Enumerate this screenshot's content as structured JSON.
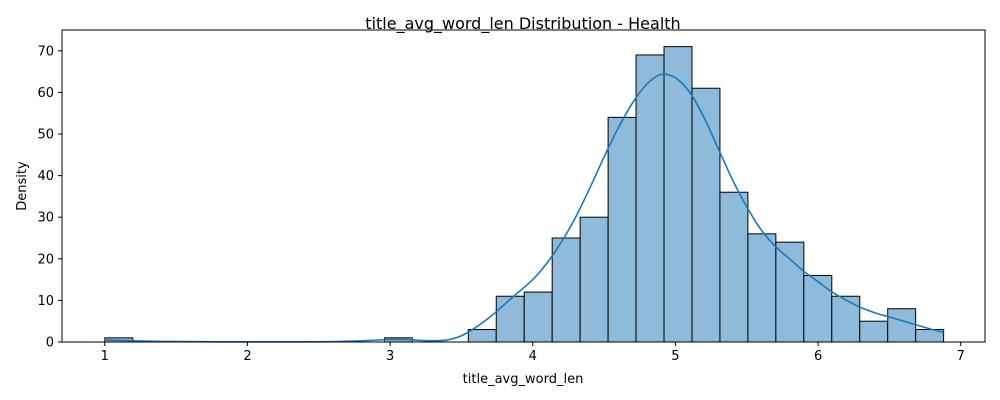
{
  "chart_data": {
    "type": "bar",
    "title": "title_avg_word_len Distribution - Health",
    "xlabel": "title_avg_word_len",
    "ylabel": "Density",
    "xlim": [
      0.7,
      7.17
    ],
    "ylim": [
      0,
      75
    ],
    "xticks": [
      1,
      2,
      3,
      4,
      5,
      6,
      7
    ],
    "yticks": [
      0,
      10,
      20,
      30,
      40,
      50,
      60,
      70
    ],
    "grid": false,
    "bins": {
      "edges": [
        1.0,
        1.196,
        1.392,
        1.588,
        1.784,
        1.98,
        2.176,
        2.372,
        2.568,
        2.764,
        2.96,
        3.156,
        3.352,
        3.548,
        3.744,
        3.94,
        4.136,
        4.332,
        4.528,
        4.724,
        4.92,
        5.116,
        5.312,
        5.508,
        5.704,
        5.9,
        6.096,
        6.292,
        6.488,
        6.684,
        6.88
      ],
      "counts": [
        1,
        0,
        0,
        0,
        0,
        0,
        0,
        0,
        0,
        0,
        1,
        0,
        0,
        3,
        11,
        12,
        25,
        30,
        54,
        69,
        71,
        61,
        36,
        26,
        24,
        16,
        11,
        5,
        8,
        3
      ]
    },
    "kde": {
      "x": [
        1.0,
        1.2,
        1.4,
        1.6,
        1.8,
        2.0,
        2.2,
        2.4,
        2.6,
        2.8,
        3.0,
        3.1,
        3.2,
        3.3,
        3.4,
        3.5,
        3.6,
        3.7,
        3.8,
        3.9,
        4.0,
        4.1,
        4.2,
        4.3,
        4.4,
        4.5,
        4.6,
        4.7,
        4.8,
        4.9,
        5.0,
        5.1,
        5.2,
        5.3,
        5.4,
        5.5,
        5.6,
        5.7,
        5.8,
        5.9,
        6.0,
        6.1,
        6.2,
        6.3,
        6.4,
        6.5,
        6.6,
        6.7,
        6.8,
        6.88
      ],
      "y": [
        0.5,
        0.3,
        0.15,
        0.1,
        0.05,
        0.05,
        0.05,
        0.05,
        0.1,
        0.3,
        0.6,
        0.6,
        0.4,
        0.3,
        0.5,
        1.5,
        3.5,
        6.0,
        9.0,
        12.0,
        15.0,
        19.0,
        24.0,
        30.0,
        37.0,
        44.5,
        51.5,
        57.5,
        62.0,
        64.3,
        63.5,
        60.0,
        54.0,
        46.5,
        39.0,
        32.5,
        27.0,
        23.0,
        20.0,
        17.0,
        14.5,
        12.0,
        10.0,
        8.3,
        7.0,
        6.0,
        5.0,
        4.0,
        3.0,
        2.3
      ]
    },
    "colors": {
      "bar_fill": "#8fbada",
      "bar_edge": "#000000",
      "kde_line": "#1f77b4"
    }
  }
}
